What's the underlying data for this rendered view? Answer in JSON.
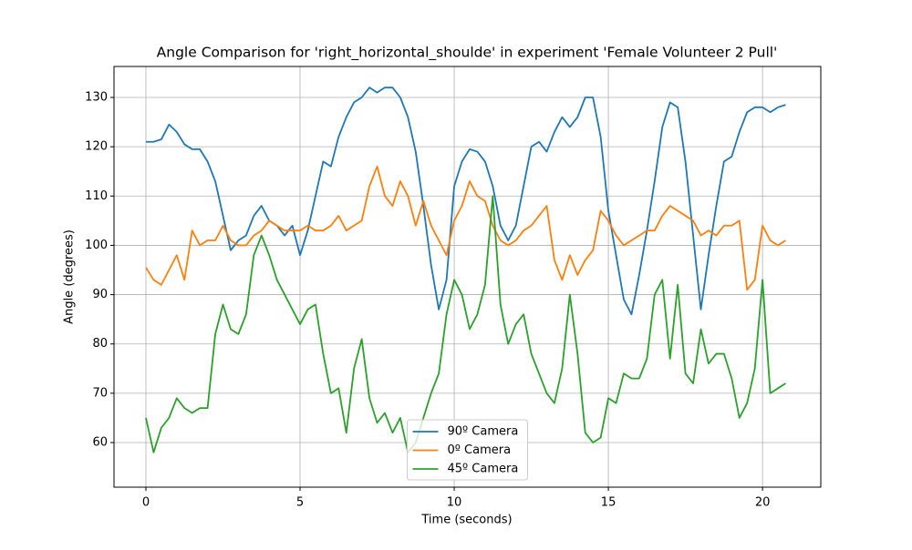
{
  "chart_data": {
    "type": "line",
    "title": "Angle Comparison for 'right_horizontal_shoulde' in experiment 'Female Volunteer 2 Pull'",
    "x_label": "Time (seconds)",
    "y_label": "Angle (degrees)",
    "x": [
      0,
      0.25,
      0.5,
      0.75,
      1,
      1.25,
      1.5,
      1.75,
      2,
      2.25,
      2.5,
      2.75,
      3,
      3.25,
      3.5,
      3.75,
      4,
      4.25,
      4.5,
      4.75,
      5,
      5.25,
      5.5,
      5.75,
      6,
      6.25,
      6.5,
      6.75,
      7,
      7.25,
      7.5,
      7.75,
      8,
      8.25,
      8.5,
      8.75,
      9,
      9.25,
      9.5,
      9.75,
      10,
      10.25,
      10.5,
      10.75,
      11,
      11.25,
      11.5,
      11.75,
      12,
      12.25,
      12.5,
      12.75,
      13,
      13.25,
      13.5,
      13.75,
      14,
      14.25,
      14.5,
      14.75,
      15,
      15.25,
      15.5,
      15.75,
      16,
      16.25,
      16.5,
      16.75,
      17,
      17.25,
      17.5,
      17.75,
      18,
      18.25,
      18.5,
      18.75,
      19,
      19.25,
      19.5,
      19.75,
      20,
      20.25,
      20.5,
      20.75
    ],
    "series": [
      {
        "name": "90º Camera",
        "color": "#1f77b4",
        "values": [
          121,
          121,
          121.5,
          124.5,
          123,
          120.5,
          119.5,
          119.5,
          117,
          113,
          106,
          99,
          101,
          102,
          106,
          108,
          105,
          104,
          102,
          104,
          98,
          103,
          110,
          117,
          116,
          122,
          126,
          129,
          130,
          132,
          131,
          132,
          132,
          130,
          126,
          119,
          108,
          96,
          87,
          93,
          112,
          117,
          119.5,
          119,
          117,
          112,
          104,
          101,
          104,
          112,
          120,
          121,
          119,
          123,
          126,
          124,
          126,
          130,
          130,
          122,
          107,
          98,
          89,
          86,
          94,
          103,
          113,
          124,
          129,
          128,
          117,
          102,
          87,
          98,
          108,
          117,
          118,
          123,
          127,
          128,
          128,
          127,
          128,
          128.5
        ]
      },
      {
        "name": "0º Camera",
        "color": "#ff7f0e",
        "values": [
          95.5,
          93,
          92,
          95,
          98,
          93,
          103,
          100,
          101,
          101,
          104,
          101,
          100,
          100,
          102,
          103,
          105,
          104,
          103,
          103,
          103,
          104,
          103,
          103,
          104,
          106,
          103,
          104,
          105,
          112,
          116,
          110,
          108,
          113,
          110,
          104,
          109,
          104,
          101,
          98,
          105,
          108,
          113,
          110,
          109,
          104,
          101,
          100,
          101,
          103,
          104,
          106,
          108,
          97,
          93,
          98,
          94,
          97,
          99,
          107,
          105,
          102,
          100,
          101,
          102,
          103,
          103,
          106,
          108,
          107,
          106,
          105,
          102,
          103,
          102,
          104,
          104,
          105,
          91,
          93,
          104,
          101,
          100,
          101
        ]
      },
      {
        "name": "45º Camera",
        "color": "#2ca02c",
        "values": [
          65,
          58,
          63,
          65,
          69,
          67,
          66,
          67,
          67,
          82,
          88,
          83,
          82,
          86,
          98,
          102,
          98,
          93,
          90,
          87,
          84,
          87,
          88,
          78,
          70,
          71,
          62,
          75,
          81,
          69,
          64,
          66,
          62,
          65,
          58,
          60,
          65,
          70,
          74,
          86,
          93,
          90,
          83,
          86,
          92,
          110,
          88,
          80,
          84,
          86,
          78,
          74,
          70,
          68,
          75,
          90,
          78,
          62,
          60,
          61,
          69,
          68,
          74,
          73,
          73,
          77,
          90,
          93,
          77,
          92,
          74,
          72,
          83,
          76,
          78,
          78,
          73,
          65,
          68,
          75,
          93,
          70,
          71,
          72
        ]
      }
    ],
    "xlim": [
      -1.035,
      21.89
    ],
    "ylim": [
      50.95,
      136.28
    ],
    "xticks": [
      0,
      5,
      10,
      15,
      20
    ],
    "yticks": [
      60,
      70,
      80,
      90,
      100,
      110,
      120,
      130
    ],
    "grid": true,
    "legend": "lower center"
  }
}
